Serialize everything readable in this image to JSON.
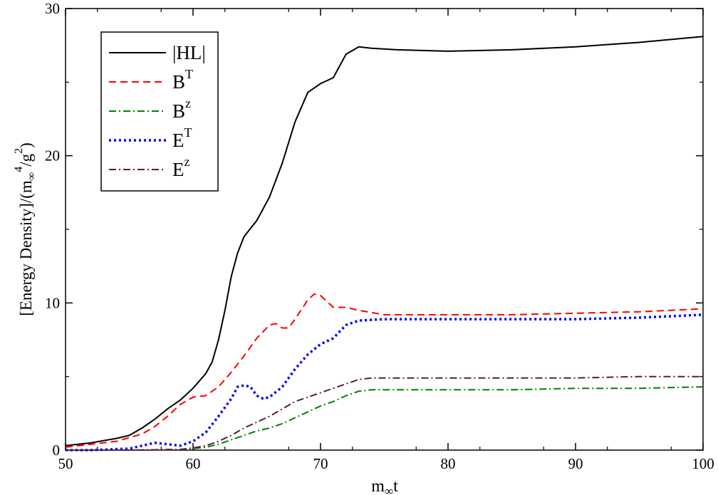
{
  "chart_data": {
    "type": "line",
    "title": "",
    "xlabel": {
      "main": "m",
      "sub": "∞",
      "tail": "t"
    },
    "ylabel": {
      "main": "[Energy Density]/(m",
      "sub": "∞",
      "sup1": "4",
      "mid": "/g",
      "sup2": "2",
      "tail": ")"
    },
    "xlim": [
      50,
      100
    ],
    "ylim": [
      0,
      30
    ],
    "x_ticks": [
      "50",
      "60",
      "70",
      "80",
      "90",
      "100"
    ],
    "y_ticks": [
      "0",
      "10",
      "20",
      "30"
    ],
    "x_tick_values": [
      50,
      60,
      70,
      80,
      90,
      100
    ],
    "y_tick_values": [
      0,
      10,
      20,
      30
    ],
    "grid": false,
    "legend_position": "top-left",
    "series": [
      {
        "name": "|HL|",
        "legend_main": "|HL|",
        "legend_sup": "",
        "color": "#000000",
        "style": "solid",
        "points": [
          [
            50,
            0.3
          ],
          [
            52,
            0.5
          ],
          [
            54,
            0.8
          ],
          [
            55,
            1.0
          ],
          [
            56,
            1.5
          ],
          [
            57,
            2.1
          ],
          [
            58,
            2.8
          ],
          [
            59,
            3.4
          ],
          [
            60,
            4.2
          ],
          [
            61,
            5.2
          ],
          [
            61.5,
            6.0
          ],
          [
            62,
            7.5
          ],
          [
            62.5,
            9.5
          ],
          [
            63,
            11.8
          ],
          [
            63.5,
            13.4
          ],
          [
            64,
            14.5
          ],
          [
            65,
            15.6
          ],
          [
            66,
            17.2
          ],
          [
            67,
            19.5
          ],
          [
            68,
            22.3
          ],
          [
            69,
            24.3
          ],
          [
            70,
            24.9
          ],
          [
            71,
            25.3
          ],
          [
            72,
            26.9
          ],
          [
            73,
            27.4
          ],
          [
            74,
            27.3
          ],
          [
            76,
            27.2
          ],
          [
            80,
            27.1
          ],
          [
            85,
            27.2
          ],
          [
            90,
            27.4
          ],
          [
            95,
            27.7
          ],
          [
            100,
            28.1
          ]
        ]
      },
      {
        "name": "B^T",
        "legend_main": "B",
        "legend_sup": "T",
        "color": "#ff0000",
        "style": "dashed",
        "points": [
          [
            50,
            0.2
          ],
          [
            52,
            0.4
          ],
          [
            54,
            0.6
          ],
          [
            56,
            1.1
          ],
          [
            57,
            1.6
          ],
          [
            58,
            2.3
          ],
          [
            59,
            3.1
          ],
          [
            60,
            3.6
          ],
          [
            61,
            3.7
          ],
          [
            62,
            4.3
          ],
          [
            63,
            5.3
          ],
          [
            64,
            6.4
          ],
          [
            65,
            7.6
          ],
          [
            66,
            8.5
          ],
          [
            66.5,
            8.6
          ],
          [
            67,
            8.3
          ],
          [
            67.5,
            8.3
          ],
          [
            68,
            8.9
          ],
          [
            69,
            10.2
          ],
          [
            69.5,
            10.6
          ],
          [
            70,
            10.5
          ],
          [
            71,
            9.7
          ],
          [
            72,
            9.7
          ],
          [
            73,
            9.5
          ],
          [
            75,
            9.2
          ],
          [
            80,
            9.2
          ],
          [
            85,
            9.2
          ],
          [
            90,
            9.3
          ],
          [
            95,
            9.4
          ],
          [
            100,
            9.6
          ]
        ]
      },
      {
        "name": "B^z",
        "legend_main": "B",
        "legend_sup": "z",
        "color": "#008000",
        "style": "dashdot",
        "points": [
          [
            50,
            0.0
          ],
          [
            55,
            0.0
          ],
          [
            59,
            0.05
          ],
          [
            60,
            0.1
          ],
          [
            61,
            0.2
          ],
          [
            62,
            0.4
          ],
          [
            63,
            0.7
          ],
          [
            64,
            1.0
          ],
          [
            65,
            1.3
          ],
          [
            66,
            1.5
          ],
          [
            67,
            1.8
          ],
          [
            68,
            2.2
          ],
          [
            69,
            2.6
          ],
          [
            70,
            3.0
          ],
          [
            71,
            3.3
          ],
          [
            72,
            3.7
          ],
          [
            73,
            4.0
          ],
          [
            74,
            4.1
          ],
          [
            75,
            4.1
          ],
          [
            80,
            4.1
          ],
          [
            85,
            4.1
          ],
          [
            90,
            4.2
          ],
          [
            95,
            4.2
          ],
          [
            100,
            4.3
          ]
        ]
      },
      {
        "name": "E^T",
        "legend_main": "E",
        "legend_sup": "T",
        "color": "#0000ff",
        "style": "dotted",
        "points": [
          [
            50,
            0.0
          ],
          [
            52,
            0.0
          ],
          [
            55,
            0.1
          ],
          [
            56,
            0.3
          ],
          [
            57,
            0.5
          ],
          [
            58,
            0.4
          ],
          [
            59,
            0.3
          ],
          [
            60,
            0.6
          ],
          [
            61,
            1.2
          ],
          [
            62,
            2.3
          ],
          [
            63,
            3.5
          ],
          [
            63.5,
            4.3
          ],
          [
            64,
            4.4
          ],
          [
            64.5,
            4.3
          ],
          [
            65,
            3.7
          ],
          [
            65.5,
            3.5
          ],
          [
            66,
            3.6
          ],
          [
            67,
            4.3
          ],
          [
            68,
            5.5
          ],
          [
            69,
            6.5
          ],
          [
            70,
            7.2
          ],
          [
            71,
            7.6
          ],
          [
            72,
            8.5
          ],
          [
            73,
            8.8
          ],
          [
            75,
            8.9
          ],
          [
            80,
            8.9
          ],
          [
            85,
            8.9
          ],
          [
            90,
            8.9
          ],
          [
            95,
            9.0
          ],
          [
            100,
            9.2
          ]
        ]
      },
      {
        "name": "E^z",
        "legend_main": "E",
        "legend_sup": "z",
        "color": "#5a1a4a",
        "style": "dashdot",
        "points": [
          [
            50,
            0.0
          ],
          [
            55,
            0.0
          ],
          [
            59,
            0.05
          ],
          [
            60,
            0.15
          ],
          [
            61,
            0.3
          ],
          [
            62,
            0.6
          ],
          [
            63,
            1.0
          ],
          [
            64,
            1.5
          ],
          [
            65,
            1.9
          ],
          [
            66,
            2.3
          ],
          [
            67,
            2.8
          ],
          [
            68,
            3.3
          ],
          [
            69,
            3.6
          ],
          [
            70,
            3.9
          ],
          [
            71,
            4.2
          ],
          [
            72,
            4.5
          ],
          [
            73,
            4.8
          ],
          [
            74,
            4.9
          ],
          [
            75,
            4.9
          ],
          [
            80,
            4.9
          ],
          [
            85,
            4.9
          ],
          [
            90,
            4.9
          ],
          [
            95,
            5.0
          ],
          [
            100,
            5.0
          ]
        ]
      }
    ]
  }
}
